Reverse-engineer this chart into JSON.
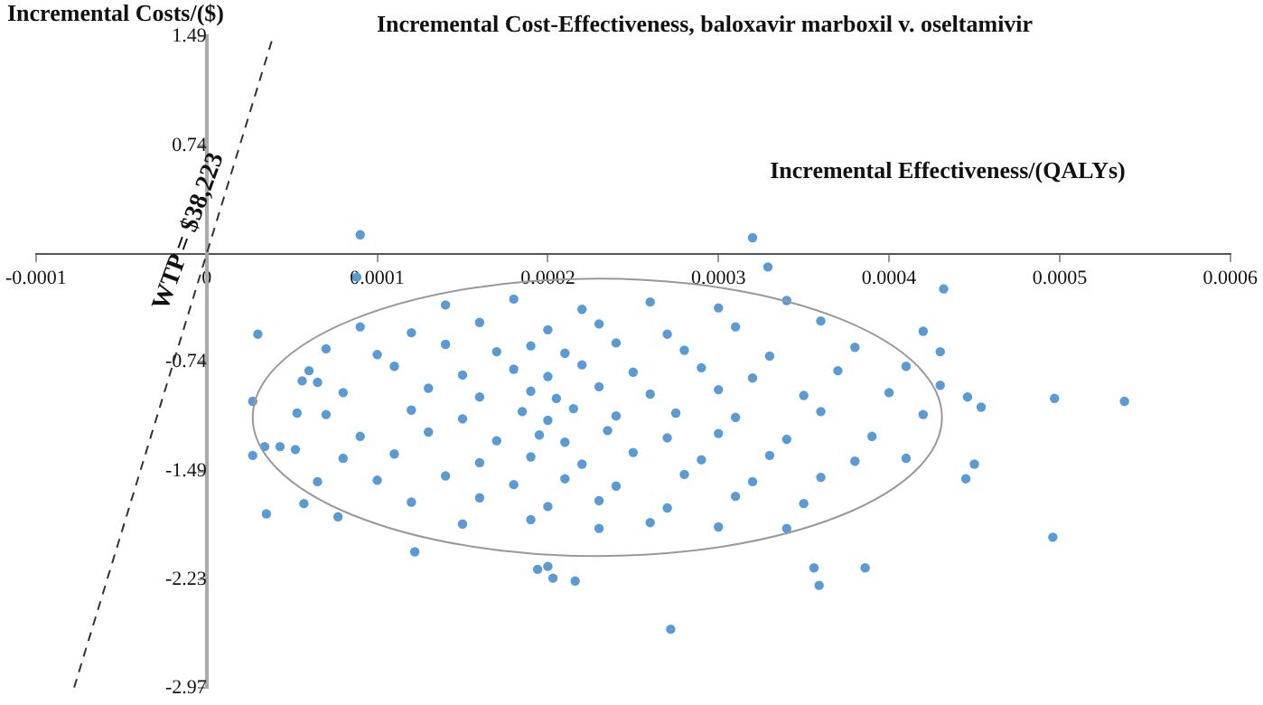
{
  "chart_data": {
    "type": "scatter",
    "title": "Incremental Cost-Effectiveness, baloxavir marboxil v. oseltamivir",
    "xlabel": "Incremental Effectiveness/(QALYs)",
    "ylabel": "Incremental Costs/($)",
    "xlim": [
      -0.0001,
      0.0006
    ],
    "xticks": [
      -0.0001,
      0,
      0.0001,
      0.0002,
      0.0003,
      0.0004,
      0.0005,
      0.0006
    ],
    "ylim": [
      -2.97,
      1.49
    ],
    "yticks": [
      -2.97,
      -2.23,
      -1.49,
      -0.74,
      0.74,
      1.49
    ],
    "grid": false,
    "legend": false,
    "annotations": [
      "WTP = $38,223"
    ],
    "series": [
      {
        "color": "#5b9bd5",
        "marker": "circle",
        "x": [
          9e-05,
          0.00032,
          0.000329,
          8.8e-05,
          3e-05,
          0.000432,
          0.000497,
          0.000538,
          0.000446,
          0.000454,
          0.00045,
          0.000445,
          0.000496,
          0.00034,
          0.000356,
          0.000359,
          0.000386,
          0.000272,
          0.000122,
          0.0002,
          0.000203,
          0.000216,
          0.000194,
          2.7e-05,
          2.7e-05,
          3.5e-05,
          5.7e-05,
          7.7e-05,
          5.3e-05,
          5.6e-05,
          6.5e-05,
          6.5e-05,
          4.3e-05,
          5.2e-05,
          3.4e-05,
          0.00014,
          0.00018,
          0.00022,
          0.00026,
          0.0003,
          0.00034,
          9e-05,
          0.00012,
          0.00016,
          0.0002,
          0.00023,
          0.00027,
          0.00031,
          0.00036,
          0.00042,
          7e-05,
          0.0001,
          0.00014,
          0.00017,
          0.00019,
          0.00021,
          0.00024,
          0.00028,
          0.00033,
          0.00038,
          0.00043,
          6e-05,
          0.00011,
          0.00015,
          0.00018,
          0.0002,
          0.00022,
          0.00025,
          0.00029,
          0.00032,
          0.00037,
          0.00041,
          8e-05,
          0.00013,
          0.00016,
          0.00019,
          0.000205,
          0.00023,
          0.00026,
          0.0003,
          0.00035,
          0.0004,
          0.00043,
          7e-05,
          0.00012,
          0.00015,
          0.000185,
          0.0002,
          0.000215,
          0.00024,
          0.000275,
          0.00031,
          0.00036,
          0.00042,
          9e-05,
          0.00013,
          0.00017,
          0.000195,
          0.00021,
          0.000235,
          0.00027,
          0.0003,
          0.00034,
          0.00039,
          8e-05,
          0.00011,
          0.00016,
          0.00019,
          0.00022,
          0.00025,
          0.00029,
          0.00033,
          0.00038,
          0.00041,
          0.0001,
          0.00014,
          0.00018,
          0.00021,
          0.00024,
          0.00028,
          0.00032,
          0.00036,
          0.00012,
          0.00016,
          0.0002,
          0.00023,
          0.00027,
          0.00031,
          0.00035,
          0.00015,
          0.00019,
          0.00023,
          0.00026,
          0.0003
        ],
        "values": [
          0.13,
          0.11,
          -0.09,
          -0.16,
          -0.55,
          -0.24,
          -0.99,
          -1.01,
          -0.98,
          -1.05,
          -1.44,
          -1.54,
          -1.94,
          -1.88,
          -2.15,
          -2.27,
          -2.15,
          -2.57,
          -2.04,
          -2.14,
          -2.22,
          -2.24,
          -2.16,
          -1.01,
          -1.38,
          -1.78,
          -1.71,
          -1.8,
          -1.09,
          -0.87,
          -0.88,
          -1.56,
          -1.32,
          -1.34,
          -1.32,
          -0.35,
          -0.31,
          -0.38,
          -0.33,
          -0.37,
          -0.32,
          -0.5,
          -0.54,
          -0.47,
          -0.52,
          -0.48,
          -0.55,
          -0.5,
          -0.46,
          -0.53,
          -0.65,
          -0.69,
          -0.62,
          -0.67,
          -0.63,
          -0.68,
          -0.61,
          -0.66,
          -0.7,
          -0.64,
          -0.67,
          -0.8,
          -0.77,
          -0.83,
          -0.79,
          -0.84,
          -0.76,
          -0.81,
          -0.78,
          -0.85,
          -0.8,
          -0.77,
          -0.95,
          -0.92,
          -0.98,
          -0.94,
          -0.99,
          -0.91,
          -0.96,
          -0.93,
          -0.97,
          -0.95,
          -0.9,
          -1.1,
          -1.07,
          -1.13,
          -1.08,
          -1.14,
          -1.06,
          -1.11,
          -1.09,
          -1.12,
          -1.08,
          -1.1,
          -1.25,
          -1.22,
          -1.28,
          -1.24,
          -1.29,
          -1.21,
          -1.26,
          -1.23,
          -1.27,
          -1.25,
          -1.4,
          -1.37,
          -1.43,
          -1.39,
          -1.44,
          -1.36,
          -1.41,
          -1.38,
          -1.42,
          -1.4,
          -1.55,
          -1.52,
          -1.58,
          -1.54,
          -1.59,
          -1.51,
          -1.56,
          -1.53,
          -1.7,
          -1.67,
          -1.73,
          -1.69,
          -1.74,
          -1.66,
          -1.71,
          -1.85,
          -1.82,
          -1.88,
          -1.84,
          -1.87
        ]
      },
      {
        "type": "line",
        "color": "#333333",
        "marker": "none",
        "line_style": "dashed",
        "x": [
          -7.77e-05,
          3.9e-05
        ],
        "values": [
          -2.97,
          1.49
        ]
      }
    ]
  }
}
